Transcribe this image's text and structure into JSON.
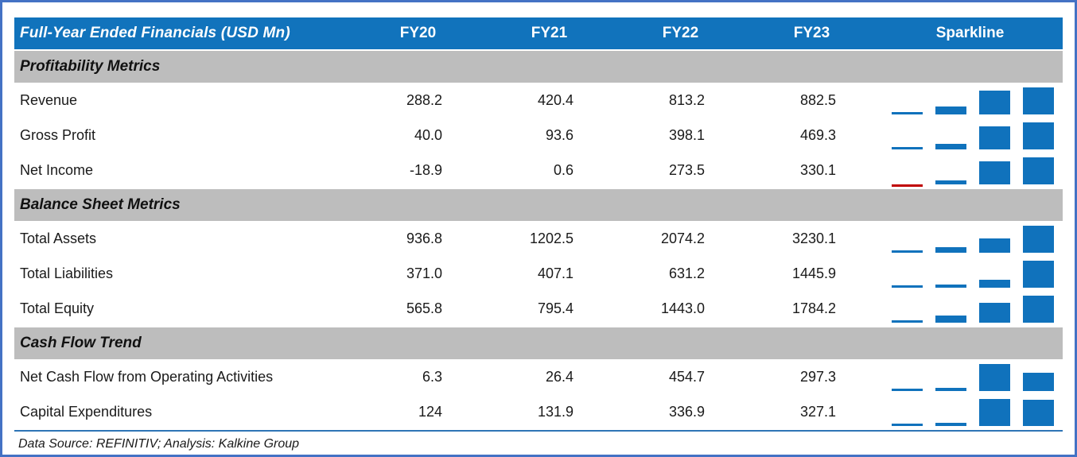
{
  "header": {
    "title": "Full-Year Ended Financials (USD Mn)",
    "columns": [
      "FY20",
      "FY21",
      "FY22",
      "FY23"
    ],
    "sparkline_label": "Sparkline"
  },
  "footer": {
    "text": "Data Source: REFINITIV; Analysis: Kalkine Group"
  },
  "colors": {
    "frame_blue": "#4472C4",
    "header_bg": "#1173BC",
    "section_bg": "#BDBDBD",
    "bar_blue": "#1072BC",
    "bar_negative": "#C00000",
    "separator_blue": "#2E75B6"
  },
  "chart_data": {
    "type": "table",
    "title": "Full-Year Ended Financials (USD Mn)",
    "columns": [
      "FY20",
      "FY21",
      "FY22",
      "FY23"
    ],
    "sparkline": {
      "type": "column",
      "scaling": "per-row min-max",
      "bar_color": "#1072BC",
      "negative_color": "#C00000",
      "legend_position": "none"
    },
    "sections": [
      {
        "name": "Profitability Metrics",
        "rows": [
          {
            "label": "Revenue",
            "values": [
              288.2,
              420.4,
              813.2,
              882.5
            ],
            "display": [
              "288.2",
              "420.4",
              "813.2",
              "882.5"
            ]
          },
          {
            "label": "Gross Profit",
            "values": [
              40.0,
              93.6,
              398.1,
              469.3
            ],
            "display": [
              "40.0",
              "93.6",
              "398.1",
              "469.3"
            ]
          },
          {
            "label": "Net Income",
            "values": [
              -18.9,
              0.6,
              273.5,
              330.1
            ],
            "display": [
              "-18.9",
              "0.6",
              "273.5",
              "330.1"
            ]
          }
        ]
      },
      {
        "name": "Balance Sheet Metrics",
        "rows": [
          {
            "label": "Total Assets",
            "values": [
              936.8,
              1202.5,
              2074.2,
              3230.1
            ],
            "display": [
              "936.8",
              "1202.5",
              "2074.2",
              "3230.1"
            ]
          },
          {
            "label": "Total Liabilities",
            "values": [
              371.0,
              407.1,
              631.2,
              1445.9
            ],
            "display": [
              "371.0",
              "407.1",
              "631.2",
              "1445.9"
            ]
          },
          {
            "label": "Total Equity",
            "values": [
              565.8,
              795.4,
              1443.0,
              1784.2
            ],
            "display": [
              "565.8",
              "795.4",
              "1443.0",
              "1784.2"
            ]
          }
        ]
      },
      {
        "name": "Cash Flow Trend",
        "rows": [
          {
            "label": "Net Cash Flow from Operating Activities",
            "values": [
              6.3,
              26.4,
              454.7,
              297.3
            ],
            "display": [
              "6.3",
              "26.4",
              "454.7",
              "297.3"
            ]
          },
          {
            "label": "Capital Expenditures",
            "values": [
              124,
              131.9,
              336.9,
              327.1
            ],
            "display": [
              "124",
              "131.9",
              "336.9",
              "327.1"
            ]
          }
        ]
      }
    ]
  }
}
